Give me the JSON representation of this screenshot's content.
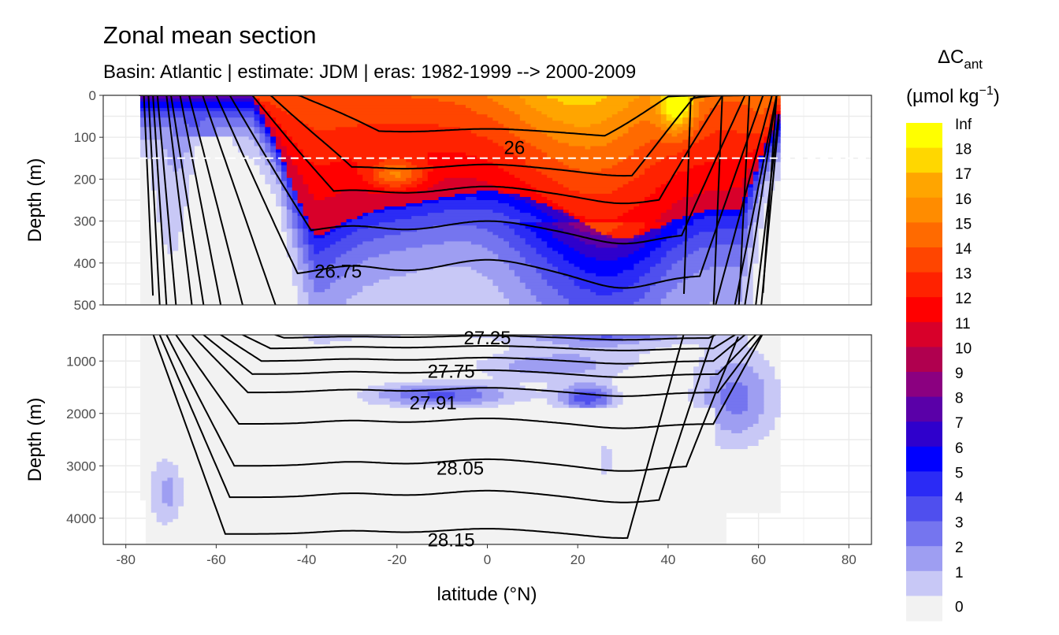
{
  "chart_data": {
    "type": "heatmap",
    "title": "Zonal mean section",
    "subtitle": "Basin: Atlantic | estimate: JDM  | eras: 1982-1999 --> 2000-2009",
    "xlabel": "latitude (°N)",
    "ylabel": "Depth (m)",
    "xlim": [
      -85,
      85
    ],
    "x_ticks": [
      "-80",
      "-60",
      "-40",
      "-20",
      "0",
      "20",
      "40",
      "60",
      "80"
    ],
    "panels": [
      {
        "name": "upper",
        "ylim": [
          0,
          500
        ],
        "y_ticks": [
          "0",
          "100",
          "200",
          "300",
          "400",
          "500"
        ],
        "reference_depth": 150
      },
      {
        "name": "lower",
        "ylim": [
          500,
          4500
        ],
        "y_ticks": [
          "1000",
          "2000",
          "3000",
          "4000"
        ]
      }
    ],
    "legend": {
      "title_main": "ΔC",
      "title_sub": "ant",
      "unit": "(µmol kg",
      "unit_exp": "−1",
      "unit_close": ")",
      "levels": [
        "Inf",
        "18",
        "17",
        "16",
        "15",
        "14",
        "13",
        "12",
        "11",
        "10",
        "9",
        "8",
        "7",
        "6",
        "5",
        "4",
        "3",
        "2",
        "1",
        "0"
      ],
      "colors": [
        "#ffff00",
        "#ffd700",
        "#ffa500",
        "#ff8c00",
        "#ff6a00",
        "#ff4500",
        "#ff2200",
        "#ff0000",
        "#d8002a",
        "#b0004f",
        "#8b0080",
        "#5a00a8",
        "#2f00cc",
        "#0000ff",
        "#2b2bf5",
        "#4f4fee",
        "#7575ef",
        "#9e9ef2",
        "#c8c8f6",
        "#f2f2f2"
      ]
    },
    "isopycnal_labels": [
      {
        "text": "26",
        "lat": 6,
        "depth": 125
      },
      {
        "text": "26.75",
        "lat": -33,
        "depth": 420
      },
      {
        "text": "27.25",
        "lat": 0,
        "depth": 560
      },
      {
        "text": "27.75",
        "lat": -8,
        "depth": 1200
      },
      {
        "text": "27.91",
        "lat": -12,
        "depth": 1800
      },
      {
        "text": "28.05",
        "lat": -6,
        "depth": 3050
      },
      {
        "text": "28.15",
        "lat": -8,
        "depth": 4420
      }
    ]
  }
}
